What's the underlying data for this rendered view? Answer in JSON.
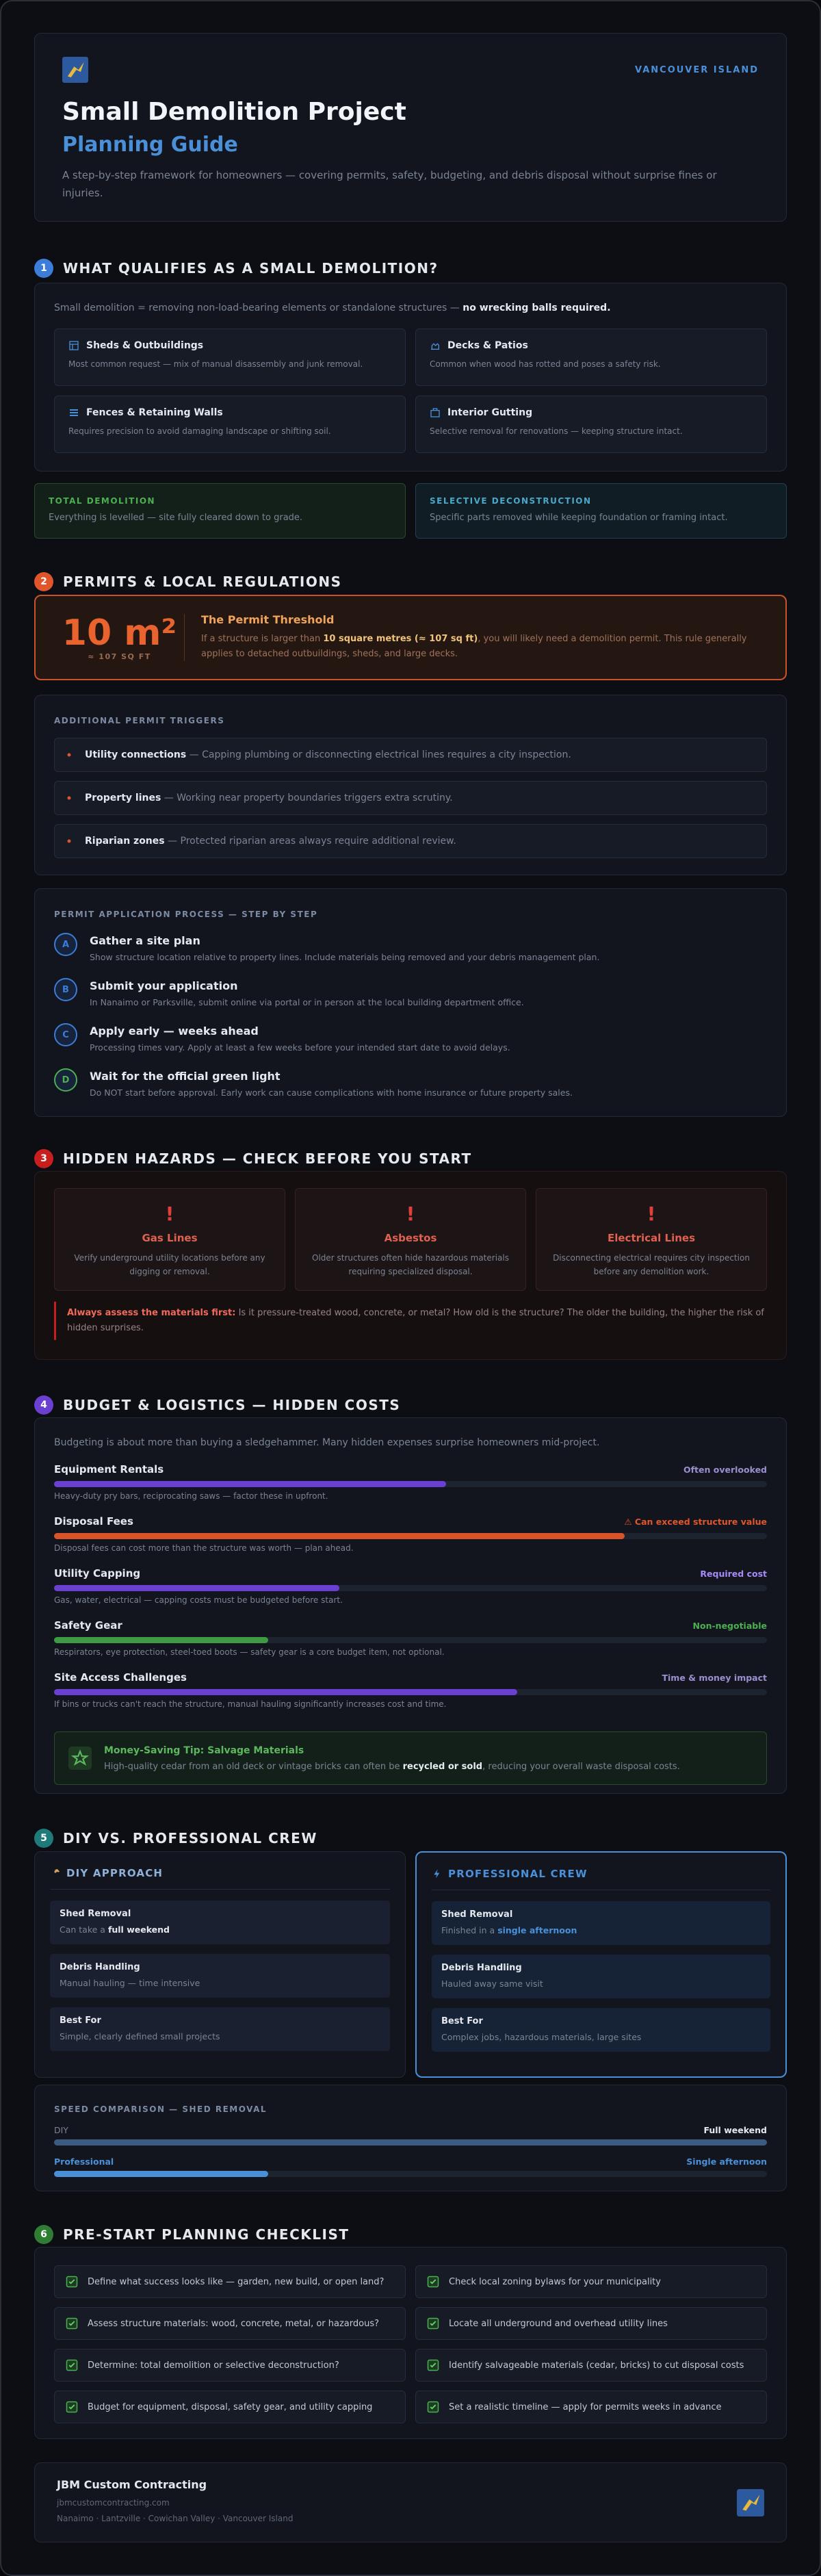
{
  "header": {
    "region": "VANCOUVER ISLAND",
    "title": "Small Demolition Project",
    "subtitle": "Planning Guide",
    "description": "A step-by-step framework for homeowners — covering permits, safety, budgeting, and debris disposal without surprise fines or injuries."
  },
  "sections": [
    {
      "number": "1",
      "title": "WHAT QUALIFIES AS A SMALL DEMOLITION?"
    },
    {
      "number": "2",
      "title": "PERMITS & LOCAL REGULATIONS"
    },
    {
      "number": "3",
      "title": "HIDDEN HAZARDS — CHECK BEFORE YOU START"
    },
    {
      "number": "4",
      "title": "BUDGET & LOGISTICS — HIDDEN COSTS"
    },
    {
      "number": "5",
      "title": "DIY VS. PROFESSIONAL CREW"
    },
    {
      "number": "6",
      "title": "PRE-START PLANNING CHECKLIST"
    }
  ],
  "qualifies": {
    "intro": [
      {
        "plain": "Small demolition = removing non-load-bearing elements or standalone structures — "
      },
      {
        "emphasis": "no wrecking balls required."
      }
    ],
    "items": [
      {
        "title": "Sheds & Outbuildings",
        "text": "Most common request — mix of manual disassembly and junk removal."
      },
      {
        "title": "Decks & Patios",
        "text": "Common when wood has rotted and poses a safety risk."
      },
      {
        "title": "Fences & Retaining Walls",
        "text": "Requires precision to avoid damaging landscape or shifting soil."
      },
      {
        "title": "Interior Gutting",
        "text": "Selective removal for renovations — keeping structure intact."
      }
    ],
    "types": [
      {
        "title": "TOTAL DEMOLITION",
        "text": "Everything is levelled — site fully cleared down to grade."
      },
      {
        "title": "SELECTIVE DECONSTRUCTION",
        "text": "Specific parts removed while keeping foundation or framing intact."
      }
    ]
  },
  "permits": {
    "threshold": {
      "value": "10 m²",
      "sub": "≈ 107 SQ FT",
      "title": "The Permit Threshold",
      "text": [
        {
          "plain": "If a structure is larger than "
        },
        {
          "emphasis": "10 square metres (≈ 107 sq ft)"
        },
        {
          "plain": ", you will likely need a demolition permit. This rule generally applies to detached outbuildings, sheds, and large decks."
        }
      ]
    },
    "triggers": {
      "title": "ADDITIONAL PERMIT TRIGGERS",
      "items": [
        {
          "label": "Utility connections",
          "text": " — Capping plumbing or disconnecting electrical lines requires a city inspection."
        },
        {
          "label": "Property lines",
          "text": " — Working near property boundaries triggers extra scrutiny."
        },
        {
          "label": "Riparian zones",
          "text": " — Protected riparian areas always require additional review."
        }
      ]
    },
    "process": {
      "title": "PERMIT APPLICATION PROCESS — STEP BY STEP",
      "steps": [
        {
          "letter": "A",
          "title": "Gather a site plan",
          "text": "Show structure location relative to property lines. Include materials being removed and your debris management plan."
        },
        {
          "letter": "B",
          "title": "Submit your application",
          "text": "In Nanaimo or Parksville, submit online via portal or in person at the local building department office."
        },
        {
          "letter": "C",
          "title": "Apply early — weeks ahead",
          "text": "Processing times vary. Apply at least a few weeks before your intended start date to avoid delays."
        },
        {
          "letter": "D",
          "title": "Wait for the official green light",
          "text": "Do NOT start before approval. Early work can cause complications with home insurance or future property sales."
        }
      ]
    }
  },
  "hazards": {
    "items": [
      {
        "icon": "!",
        "title": "Gas Lines",
        "text": "Verify underground utility locations before any digging or removal."
      },
      {
        "icon": "!",
        "title": "Asbestos",
        "text": "Older structures often hide hazardous materials requiring specialized disposal."
      },
      {
        "icon": "!",
        "title": "Electrical Lines",
        "text": "Disconnecting electrical requires city inspection before any demolition work."
      }
    ],
    "note": [
      {
        "emphasis": "Always assess the materials first:"
      },
      {
        "plain": " Is it pressure-treated wood, concrete, or metal? How old is the structure? The older the building, the higher the risk of hidden surprises."
      }
    ]
  },
  "budget": {
    "intro": "Budgeting is about more than buying a sledgehammer. Many hidden expenses surprise homeowners mid-project.",
    "items": [
      {
        "label": "Equipment Rentals",
        "tag": "Often overlooked",
        "text": "Heavy-duty pry bars, reciprocating saws — factor these in upfront."
      },
      {
        "label": "Disposal Fees",
        "tag": "⚠ Can exceed structure value",
        "text": "Disposal fees can cost more than the structure was worth — plan ahead."
      },
      {
        "label": "Utility Capping",
        "tag": "Required cost",
        "text": "Gas, water, electrical — capping costs must be budgeted before start."
      },
      {
        "label": "Safety Gear",
        "tag": "Non-negotiable",
        "text": "Respirators, eye protection, steel-toed boots — safety gear is a core budget item, not optional."
      },
      {
        "label": "Site Access Challenges",
        "tag": "Time & money impact",
        "text": "If bins or trucks can't reach the structure, manual hauling significantly increases cost and time."
      }
    ],
    "tip": {
      "title": "Money-Saving Tip: Salvage Materials",
      "text": [
        {
          "plain": "High-quality cedar from an old deck or vintage bricks can often be "
        },
        {
          "emphasis": "recycled or sold"
        },
        {
          "plain": ", reducing your overall waste disposal costs."
        }
      ]
    }
  },
  "comparison": {
    "diy": {
      "title": "DIY APPROACH",
      "rows": [
        {
          "label": "Shed Removal",
          "text": [
            {
              "plain": "Can take a "
            },
            {
              "emphasis": "full weekend"
            }
          ]
        },
        {
          "label": "Debris Handling",
          "text": [
            {
              "plain": "Manual hauling — time intensive"
            }
          ]
        },
        {
          "label": "Best For",
          "text": [
            {
              "plain": "Simple, clearly defined small projects"
            }
          ]
        }
      ]
    },
    "pro": {
      "title": "PROFESSIONAL CREW",
      "rows": [
        {
          "label": "Shed Removal",
          "text": [
            {
              "plain": "Finished in a "
            },
            {
              "emphasis": "single afternoon"
            }
          ]
        },
        {
          "label": "Debris Handling",
          "text": [
            {
              "plain": "Hauled away same visit"
            }
          ]
        },
        {
          "label": "Best For",
          "text": [
            {
              "plain": "Complex jobs, hazardous materials, large sites"
            }
          ]
        }
      ]
    },
    "speed": {
      "title": "SPEED COMPARISON — SHED REMOVAL",
      "rows": [
        {
          "label": "DIY",
          "value": "Full weekend"
        },
        {
          "label": "Professional",
          "value": "Single afternoon"
        }
      ]
    }
  },
  "checklist": {
    "items": [
      "Define what success looks like — garden, new build, or open land?",
      "Check local zoning bylaws for your municipality",
      "Assess structure materials: wood, concrete, metal, or hazardous?",
      "Locate all underground and overhead utility lines",
      "Determine: total demolition or selective deconstruction?",
      "Identify salvageable materials (cedar, bricks) to cut disposal costs",
      "Budget for equipment, disposal, safety gear, and utility capping",
      "Set a realistic timeline — apply for permits weeks in advance"
    ]
  },
  "footer": {
    "company": "JBM Custom Contracting",
    "website": "jbmcustomcontracting.com",
    "locations": "Nanaimo · Lantzville · Cowichan Valley · Vancouver Island"
  }
}
